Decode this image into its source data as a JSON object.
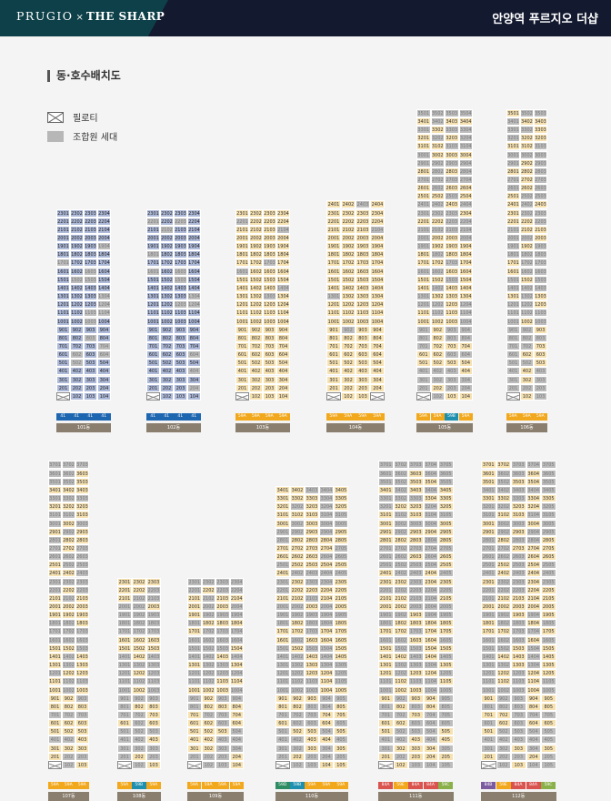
{
  "header": {
    "brand": "PRUGIO",
    "brand_sep": "×",
    "brand_partner": "THE SHARP",
    "title": "안양역 푸르지오 더샵"
  },
  "section": {
    "title": "동·호수배치도"
  },
  "legend": {
    "piloti": "필로티",
    "member": "조합원 세대"
  },
  "type_colors": {
    "41": "#1f66b1",
    "59A": "#f2a81d",
    "59B": "#1e8fae",
    "59D": "#2e8c63",
    "84A": "#d9534f",
    "84B": "#7c5aa0",
    "84A_": "#d9534f",
    "59C": "#8ab04a"
  },
  "buildings": [
    {
      "name": "101동",
      "floors": 23,
      "top": 20,
      "units": [
        "01",
        "02",
        "03",
        "04"
      ],
      "types": [
        "41",
        "41",
        "41",
        "41"
      ],
      "color": "b",
      "piloti": [
        1,
        2
      ],
      "gray": [],
      "topFloor": {}
    },
    {
      "name": "102동",
      "floors": 23,
      "top": 20,
      "units": [
        "01",
        "02",
        "03",
        "04"
      ],
      "types": [
        "41",
        "41",
        "41",
        "41"
      ],
      "color": "b",
      "piloti": [
        1
      ],
      "gray": [],
      "topFloor": {
        "23": 2,
        "22": 2
      }
    },
    {
      "name": "103동",
      "floors": 23,
      "top": 20,
      "units": [
        "01",
        "02",
        "03",
        "04"
      ],
      "types": [
        "59A",
        "59A",
        "59A",
        "59A"
      ],
      "color": "y",
      "piloti": [
        1
      ],
      "gray": [],
      "topFloor": {
        "23": 2,
        "22": 2
      }
    },
    {
      "name": "104동",
      "floors": 24,
      "top": 21,
      "units": [
        "01",
        "02",
        "03",
        "04"
      ],
      "types": [
        "59A",
        "59A",
        "59A",
        "59A"
      ],
      "color": "y",
      "piloti": [
        1,
        4
      ],
      "gray": [],
      "topFloor": {}
    },
    {
      "name": "105동",
      "floors": 35,
      "top": 35,
      "units": [
        "01",
        "02",
        "03",
        "04"
      ],
      "types": [
        "59A",
        "59A",
        "59B",
        "59A"
      ],
      "color": "y",
      "piloti": [
        1,
        4
      ],
      "gray": [],
      "topFloor": {}
    },
    {
      "name": "106동",
      "floors": 35,
      "top": 35,
      "units": [
        "01",
        "02",
        "03"
      ],
      "types": [
        "59A",
        "59A",
        "59A"
      ],
      "color": "y",
      "piloti": [
        1
      ],
      "gray": [],
      "topFloor": {}
    },
    {
      "name": "107동",
      "floors": 37,
      "top": 37,
      "units": [
        "01",
        "02",
        "03"
      ],
      "types": [
        "59A",
        "59A",
        "59A"
      ],
      "color": "y",
      "piloti": [
        1
      ],
      "gray": [],
      "topFloor": {}
    },
    {
      "name": "108동",
      "floors": 23,
      "top": 23,
      "units": [
        "01",
        "02",
        "03"
      ],
      "types": [
        "59A",
        "59B",
        "59A"
      ],
      "color": "y",
      "piloti": [
        1
      ],
      "gray": [],
      "topFloor": {}
    },
    {
      "name": "109동",
      "floors": 23,
      "top": 23,
      "units": [
        "01",
        "02",
        "03",
        "04"
      ],
      "types": [
        "59A",
        "59A",
        "59A",
        "59A"
      ],
      "color": "y",
      "piloti": [
        1
      ],
      "gray": [],
      "topFloor": {}
    },
    {
      "name": "110동",
      "floors": 34,
      "top": 34,
      "units": [
        "01",
        "02",
        "03",
        "04",
        "05"
      ],
      "types": [
        "59D",
        "59B",
        "59A",
        "59A",
        "59A"
      ],
      "color": "y",
      "piloti": [
        1
      ],
      "gray": [],
      "topFloor": {}
    },
    {
      "name": "111동",
      "floors": 37,
      "top": 37,
      "units": [
        "01",
        "02",
        "03",
        "04",
        "05"
      ],
      "types": [
        "84A",
        "59E",
        "84A",
        "84A",
        "59C"
      ],
      "color": "y",
      "piloti": [
        1
      ],
      "gray": [],
      "topFloor": {}
    },
    {
      "name": "112동",
      "floors": 37,
      "top": 37,
      "units": [
        "01",
        "02",
        "03",
        "04",
        "05"
      ],
      "types": [
        "84B",
        "59E",
        "84A",
        "84A",
        "59C"
      ],
      "color": "y",
      "piloti": [
        1
      ],
      "gray": [],
      "topFloor": {}
    }
  ]
}
